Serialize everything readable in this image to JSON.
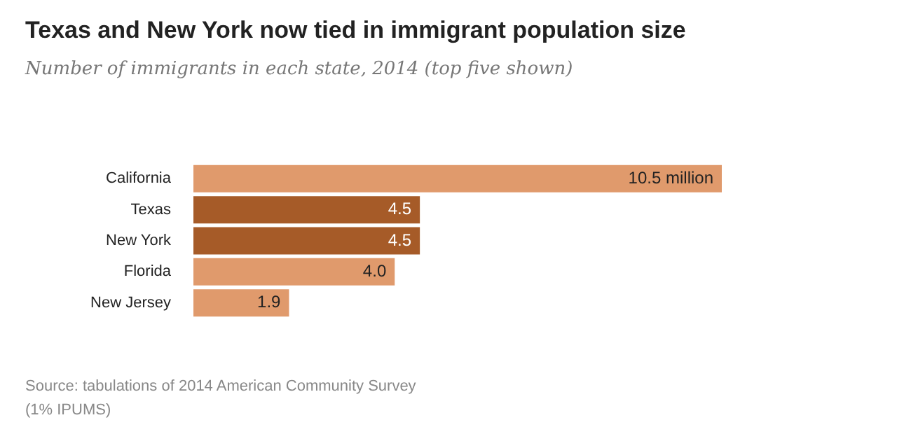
{
  "chart_data": {
    "type": "bar",
    "orientation": "horizontal",
    "title": "Texas and New York now tied in immigrant population size",
    "subtitle": "Number of immigrants in each state, 2014 (top five shown)",
    "categories": [
      "California",
      "Texas",
      "New York",
      "Florida",
      "New Jersey"
    ],
    "values": [
      10.5,
      4.5,
      4.5,
      4.0,
      1.9
    ],
    "colors": [
      "#e09a6c",
      "#a65b28",
      "#a65b28",
      "#e09a6c",
      "#e09a6c"
    ],
    "value_labels": [
      "10.5 million",
      "4.5",
      "4.5",
      "4.0",
      "1.9"
    ],
    "annotations": [
      "Source: tabulations of 2014 American Community Survey (1% IPUMS)"
    ]
  }
}
